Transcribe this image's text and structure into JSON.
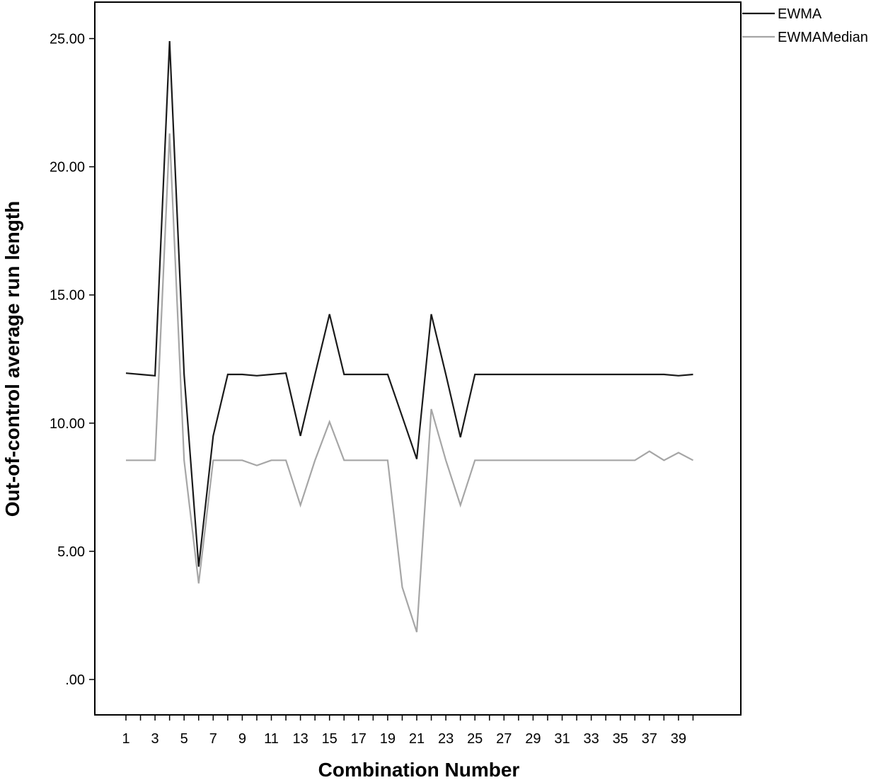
{
  "chart_data": {
    "type": "line",
    "xlabel": "Combination Number",
    "ylabel": "Out-of-control average run length",
    "xlim": [
      1,
      40
    ],
    "ylim": [
      0,
      25
    ],
    "x_tick_labels": [
      "1",
      "3",
      "5",
      "7",
      "9",
      "11",
      "13",
      "15",
      "17",
      "19",
      "21",
      "23",
      "25",
      "27",
      "29",
      "31",
      "33",
      "35",
      "37",
      "39"
    ],
    "y_tick_labels": [
      ".00",
      "5.00",
      "10.00",
      "15.00",
      "20.00",
      "25.00"
    ],
    "grid": false,
    "legend_position": "outside-top-right",
    "x": [
      1,
      2,
      3,
      4,
      5,
      6,
      7,
      8,
      9,
      10,
      11,
      12,
      13,
      14,
      15,
      16,
      17,
      18,
      19,
      20,
      21,
      22,
      23,
      24,
      25,
      26,
      27,
      28,
      29,
      30,
      31,
      32,
      33,
      35,
      36,
      37,
      38,
      39,
      40
    ],
    "series": [
      {
        "name": "EWMA",
        "color": "#1a1a1a",
        "values": [
          11.95,
          11.9,
          11.85,
          24.9,
          11.9,
          4.4,
          9.5,
          11.9,
          11.9,
          11.85,
          11.9,
          11.95,
          9.5,
          11.9,
          14.25,
          11.9,
          11.9,
          11.9,
          11.9,
          10.25,
          8.6,
          14.25,
          11.9,
          9.45,
          11.9,
          11.9,
          11.9,
          11.9,
          11.9,
          11.9,
          11.9,
          11.9,
          11.9,
          11.9,
          11.9,
          11.9,
          11.9,
          11.85,
          11.9
        ]
      },
      {
        "name": "EWMAMedian",
        "color": "#a6a6a6",
        "values": [
          8.55,
          8.55,
          8.55,
          21.3,
          8.55,
          3.75,
          8.55,
          8.55,
          8.55,
          8.35,
          8.55,
          8.55,
          6.8,
          8.55,
          10.05,
          8.55,
          8.55,
          8.55,
          8.55,
          3.6,
          1.85,
          10.55,
          8.55,
          6.8,
          8.55,
          8.55,
          8.55,
          8.55,
          8.55,
          8.55,
          8.55,
          8.55,
          8.55,
          8.55,
          8.55,
          8.9,
          8.55,
          8.85,
          8.55
        ]
      }
    ]
  }
}
